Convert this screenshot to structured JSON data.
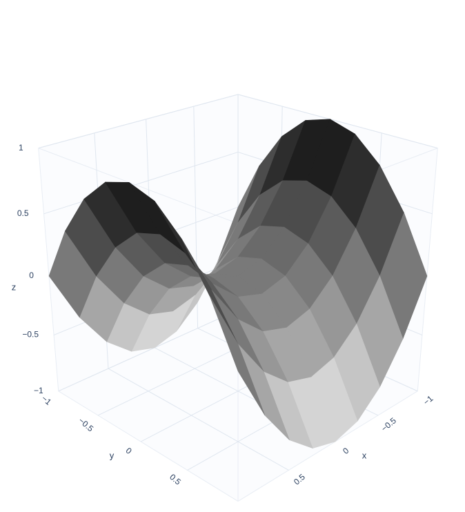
{
  "chart_data": {
    "type": "surface",
    "x_title": "x",
    "y_title": "y",
    "z_title": "z",
    "x": [
      -1,
      -0.75,
      -0.5,
      -0.25,
      0,
      0.25,
      0.5,
      0.75,
      1
    ],
    "y": [
      -1,
      -0.75,
      -0.5,
      -0.25,
      0,
      0.25,
      0.5,
      0.75,
      1
    ],
    "z": [
      [
        0,
        -0.4375,
        -0.75,
        -0.9375,
        -1,
        -0.9375,
        -0.75,
        -0.4375,
        0
      ],
      [
        0.4375,
        0,
        -0.3125,
        -0.5,
        -0.5625,
        -0.5,
        -0.3125,
        0,
        0.4375
      ],
      [
        0.75,
        0.3125,
        0,
        -0.1875,
        -0.25,
        -0.1875,
        0,
        0.3125,
        0.75
      ],
      [
        0.9375,
        0.5,
        0.1875,
        0,
        -0.0625,
        0,
        0.1875,
        0.5,
        0.9375
      ],
      [
        1,
        0.5625,
        0.25,
        0.0625,
        0,
        0.0625,
        0.25,
        0.5625,
        1
      ],
      [
        0.9375,
        0.5,
        0.1875,
        0,
        -0.0625,
        0,
        0.1875,
        0.5,
        0.9375
      ],
      [
        0.75,
        0.3125,
        0,
        -0.1875,
        -0.25,
        -0.1875,
        0,
        0.3125,
        0.75
      ],
      [
        0.4375,
        0,
        -0.3125,
        -0.5,
        -0.5625,
        -0.5,
        -0.3125,
        0,
        0.4375
      ],
      [
        0,
        -0.4375,
        -0.75,
        -0.9375,
        -1,
        -0.9375,
        -0.75,
        -0.4375,
        0
      ]
    ],
    "colorscale": [
      "#f2f2f2",
      "#000000"
    ],
    "xlim": [
      -1,
      1
    ],
    "ylim": [
      -1,
      1
    ],
    "zlim": [
      -1,
      1
    ],
    "xticks": [
      {
        "value": -1,
        "label": "−1"
      },
      {
        "value": -0.5,
        "label": "−0.5"
      },
      0,
      0.5
    ],
    "yticks": [
      {
        "value": -1,
        "label": "−1"
      },
      {
        "value": -0.5,
        "label": "−0.5"
      },
      0,
      0.5
    ],
    "zticks": [
      {
        "value": -1,
        "label": "−1"
      },
      {
        "value": -0.5,
        "label": "−0.5"
      },
      0,
      0.5,
      1
    ],
    "grid": true
  }
}
